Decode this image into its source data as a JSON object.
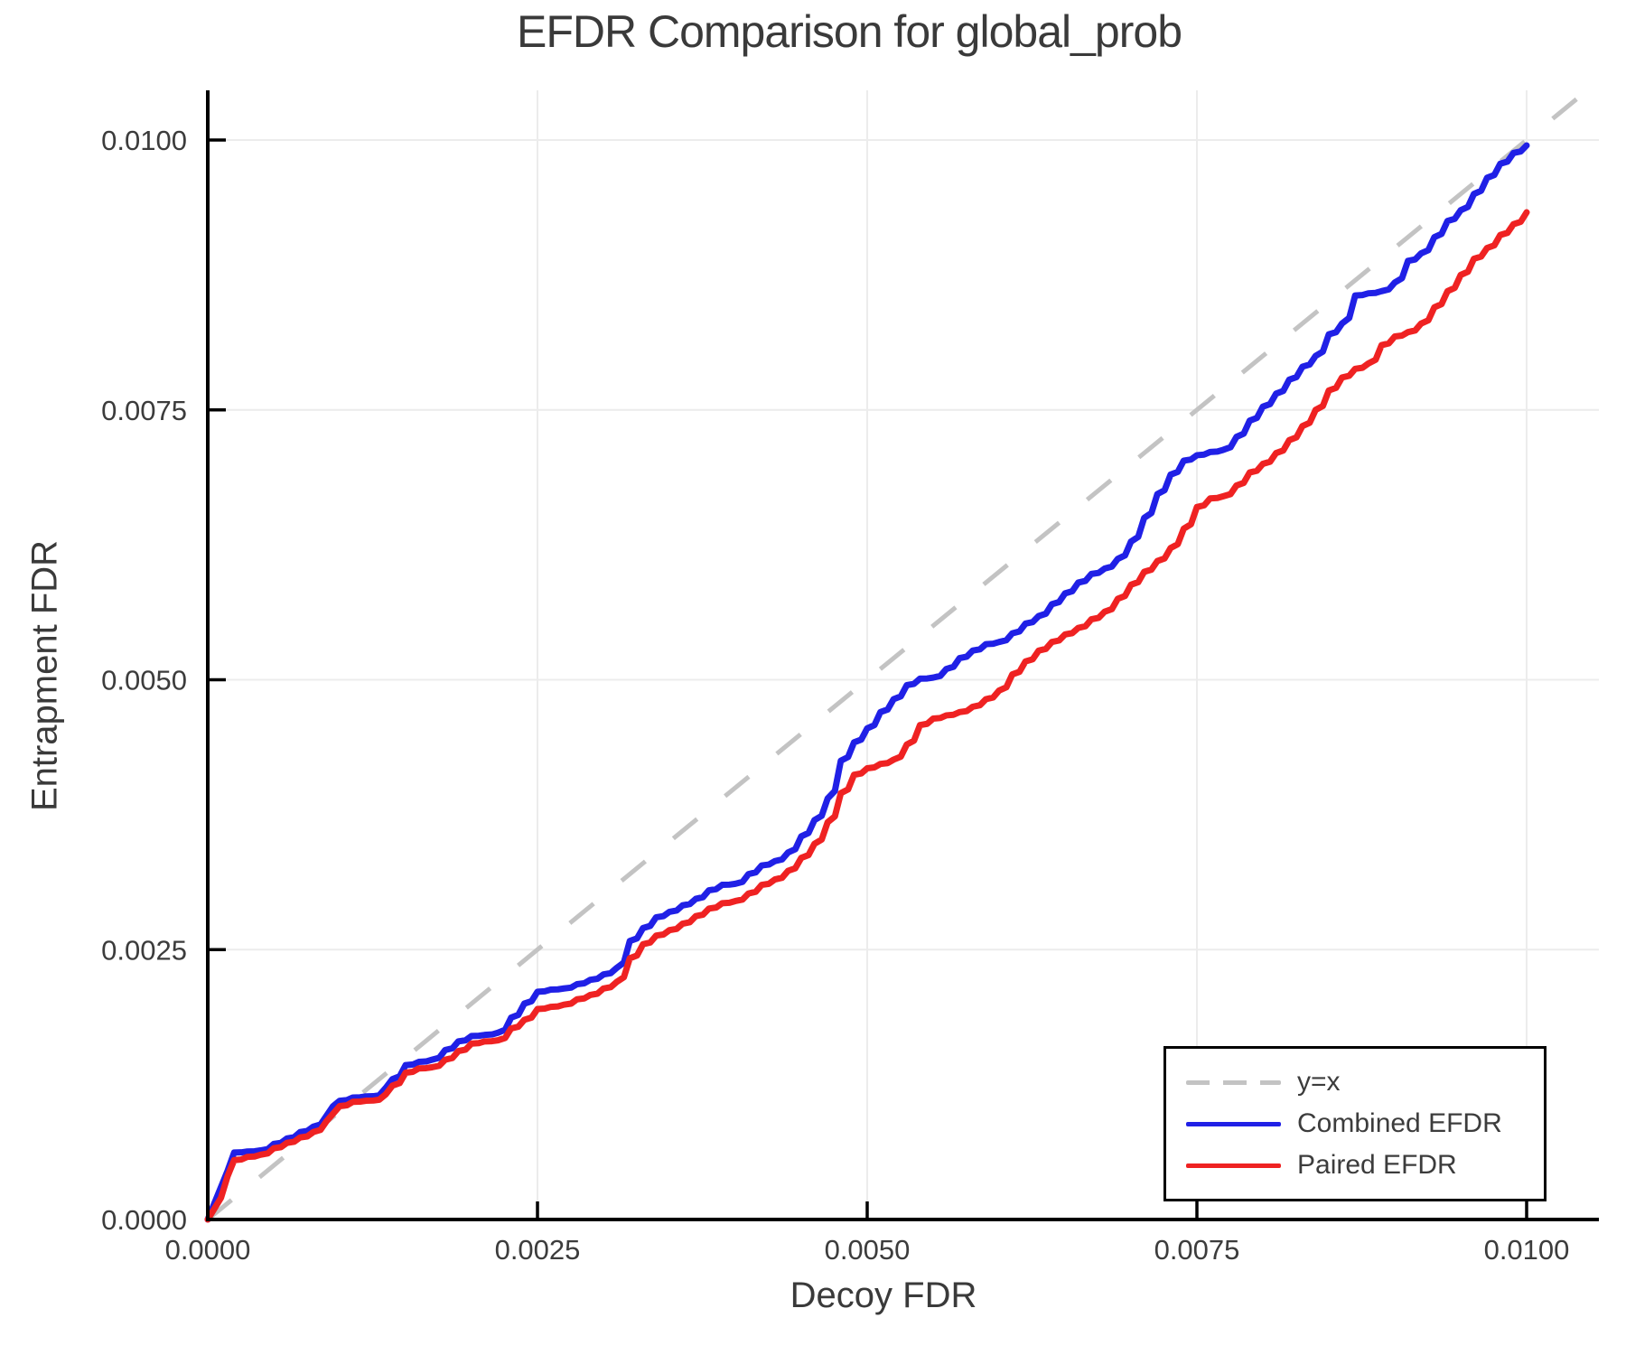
{
  "chart_data": {
    "type": "line",
    "title": "EFDR Comparison for global_prob",
    "xlabel": "Decoy FDR",
    "ylabel": "Entrapment FDR",
    "xlim": [
      0,
      0.010548
    ],
    "ylim": [
      0,
      0.01046
    ],
    "grid": true,
    "legend_position": "bottom-right",
    "x_axis": {
      "tick_values": [
        0,
        0.0025,
        0.005,
        0.0075,
        0.01
      ],
      "tick_labels": [
        "0.0000",
        "0.0025",
        "0.0050",
        "0.0075",
        "0.0100"
      ]
    },
    "y_axis": {
      "tick_values": [
        0,
        0.0025,
        0.005,
        0.0075,
        0.01
      ],
      "tick_labels": [
        "0.0000",
        "0.0025",
        "0.0050",
        "0.0075",
        "0.0100"
      ]
    },
    "reference_line": {
      "name": "y=x",
      "style": "dashed",
      "color": "#c3c3c3",
      "from": [
        0,
        0
      ],
      "slope": 1
    },
    "x": [
      0.0,
      5e-05,
      0.0001,
      0.00015,
      0.0002,
      0.0003,
      0.0004,
      0.0005,
      0.0006,
      0.0007,
      0.0008,
      0.0009,
      0.00095,
      0.001,
      0.0011,
      0.0012,
      0.0013,
      0.00135,
      0.0014,
      0.0015,
      0.0016,
      0.0017,
      0.0018,
      0.0019,
      0.002,
      0.0021,
      0.0022,
      0.0023,
      0.0024,
      0.0025,
      0.0026,
      0.0027,
      0.0028,
      0.0029,
      0.003,
      0.0031,
      0.0032,
      0.0033,
      0.0034,
      0.0035,
      0.0036,
      0.0037,
      0.0038,
      0.0039,
      0.004,
      0.0041,
      0.0042,
      0.0043,
      0.0044,
      0.0045,
      0.0046,
      0.0047,
      0.0048,
      0.0049,
      0.005,
      0.0051,
      0.0052,
      0.0053,
      0.0054,
      0.0055,
      0.0056,
      0.0057,
      0.0058,
      0.0059,
      0.006,
      0.0061,
      0.0062,
      0.0063,
      0.0064,
      0.0065,
      0.0066,
      0.0067,
      0.0068,
      0.0069,
      0.007,
      0.0071,
      0.0072,
      0.0073,
      0.0074,
      0.0075,
      0.0076,
      0.0077,
      0.0078,
      0.0079,
      0.008,
      0.0081,
      0.0082,
      0.0083,
      0.0084,
      0.0085,
      0.0086,
      0.0087,
      0.0088,
      0.0089,
      0.009,
      0.0091,
      0.0092,
      0.0093,
      0.0094,
      0.0095,
      0.0096,
      0.0097,
      0.0098,
      0.0099,
      0.01
    ],
    "series": [
      {
        "name": "Combined EFDR",
        "color": "#2020e6",
        "y": [
          0,
          0.00015,
          0.0003,
          0.00045,
          0.00062,
          0.00063,
          0.00064,
          0.0007,
          0.00075,
          0.00081,
          0.00086,
          0.00096,
          0.00105,
          0.0011,
          0.00113,
          0.00114,
          0.00115,
          0.00122,
          0.0013,
          0.00143,
          0.00146,
          0.00148,
          0.00157,
          0.00165,
          0.0017,
          0.00171,
          0.00173,
          0.00187,
          0.002,
          0.00211,
          0.00213,
          0.00214,
          0.00218,
          0.00222,
          0.00227,
          0.00233,
          0.00258,
          0.0027,
          0.0028,
          0.00285,
          0.00291,
          0.00297,
          0.00305,
          0.0031,
          0.00311,
          0.0032,
          0.00328,
          0.00332,
          0.0034,
          0.00355,
          0.0037,
          0.0039,
          0.00425,
          0.00442,
          0.00455,
          0.0047,
          0.00482,
          0.00495,
          0.00501,
          0.00502,
          0.0051,
          0.0052,
          0.00527,
          0.00533,
          0.00535,
          0.00543,
          0.00552,
          0.00559,
          0.0057,
          0.0058,
          0.0059,
          0.00598,
          0.00603,
          0.00612,
          0.00628,
          0.0065,
          0.00672,
          0.0069,
          0.00703,
          0.00708,
          0.00711,
          0.00713,
          0.00725,
          0.0074,
          0.00753,
          0.00765,
          0.00778,
          0.0079,
          0.008,
          0.0082,
          0.0083,
          0.00856,
          0.00858,
          0.0086,
          0.00868,
          0.00888,
          0.00895,
          0.0091,
          0.00925,
          0.00935,
          0.0095,
          0.00965,
          0.00978,
          0.00988,
          0.00995
        ]
      },
      {
        "name": "Paired EFDR",
        "color": "#ef2222",
        "y": [
          0,
          0.0001,
          0.0002,
          0.0004,
          0.00055,
          0.00058,
          0.0006,
          0.00066,
          0.00071,
          0.00076,
          0.00081,
          0.00091,
          0.00098,
          0.00105,
          0.00109,
          0.0011,
          0.00111,
          0.00116,
          0.00124,
          0.00136,
          0.0014,
          0.00141,
          0.00148,
          0.00156,
          0.00163,
          0.00165,
          0.00166,
          0.00177,
          0.00185,
          0.00195,
          0.00197,
          0.00199,
          0.00204,
          0.00208,
          0.00214,
          0.0022,
          0.00242,
          0.00255,
          0.00263,
          0.00268,
          0.00274,
          0.00281,
          0.00288,
          0.00293,
          0.00295,
          0.00302,
          0.0031,
          0.00315,
          0.00323,
          0.00335,
          0.00348,
          0.00368,
          0.00395,
          0.00412,
          0.00418,
          0.00422,
          0.00426,
          0.0044,
          0.00458,
          0.00464,
          0.00467,
          0.0047,
          0.00475,
          0.00482,
          0.0049,
          0.00505,
          0.00517,
          0.00527,
          0.00535,
          0.00542,
          0.00548,
          0.00556,
          0.00563,
          0.00575,
          0.00588,
          0.006,
          0.0061,
          0.00622,
          0.0064,
          0.0066,
          0.00668,
          0.0067,
          0.0068,
          0.00692,
          0.007,
          0.0071,
          0.00722,
          0.00735,
          0.0075,
          0.00768,
          0.0078,
          0.00788,
          0.00793,
          0.0081,
          0.00818,
          0.00822,
          0.0083,
          0.00845,
          0.0086,
          0.00875,
          0.0089,
          0.009,
          0.00912,
          0.00922,
          0.00933
        ]
      }
    ]
  },
  "legend": {
    "items": [
      {
        "label": "y=x",
        "color": "#c3c3c3",
        "style": "dashed"
      },
      {
        "label": "Combined EFDR",
        "color": "#2020e6",
        "style": "solid"
      },
      {
        "label": "Paired EFDR",
        "color": "#ef2222",
        "style": "solid"
      }
    ]
  },
  "style": {
    "grid_color": "#ececec",
    "axis_color": "#000000",
    "text_color": "#3c3c3c"
  }
}
